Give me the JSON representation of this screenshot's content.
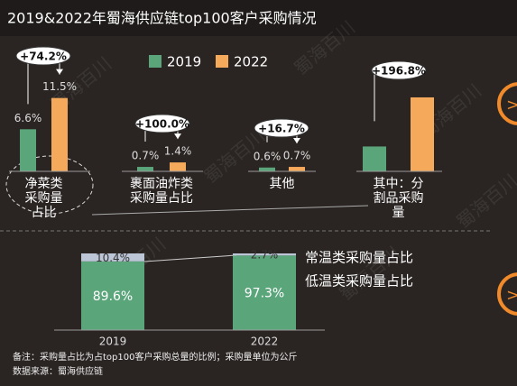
{
  "title": "2019&2022年蜀海供应链top100客户采购情况",
  "watermark": "蜀海百川",
  "chart_data": [
    {
      "type": "bar",
      "categories": [
        "净菜类采购量占比",
        "裹面油炸类采购量占比",
        "其他",
        "其中：分割品采购量"
      ],
      "series": [
        {
          "name": "2019",
          "color": "#5ba57b",
          "values": [
            6.6,
            0.7,
            0.6,
            3.9
          ],
          "value_labels": [
            "6.6%",
            "0.7%",
            "0.6%",
            null
          ]
        },
        {
          "name": "2022",
          "color": "#f5a95b",
          "values": [
            11.5,
            1.4,
            0.7,
            11.6
          ],
          "value_labels": [
            "11.5%",
            "1.4%",
            "0.7%",
            null
          ]
        }
      ],
      "annotations": [
        "+74.2%",
        "+100.0%",
        "+16.7%",
        "+196.8%"
      ],
      "ylim": [
        0,
        14
      ]
    },
    {
      "type": "stacked_bar",
      "categories": [
        "2019",
        "2022"
      ],
      "series": [
        {
          "name": "常温类采购量占比",
          "color": "#bcc6d6",
          "values": [
            10.4,
            2.7
          ],
          "value_labels": [
            "10.4%",
            "2.7%"
          ]
        },
        {
          "name": "低温类采购量占比",
          "color": "#5ba57b",
          "values": [
            89.6,
            97.3
          ],
          "value_labels": [
            "89.6%",
            "97.3%"
          ]
        }
      ],
      "ylim": [
        0,
        100
      ]
    }
  ],
  "notes": [
    "备注：采购量占比为占top100客户采购总量的比例；采购量单位为公斤",
    "数据来源：蜀海供应链"
  ]
}
